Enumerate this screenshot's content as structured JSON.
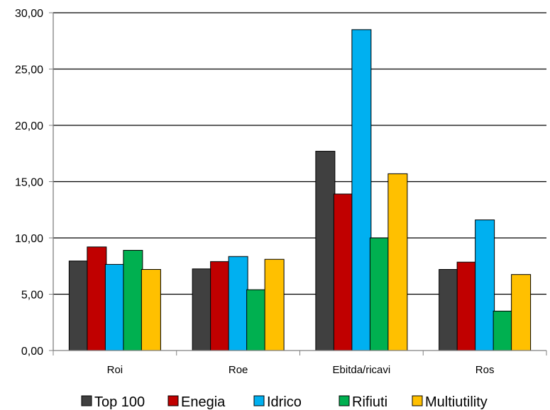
{
  "chart_data": {
    "type": "bar",
    "title": "",
    "xlabel": "",
    "ylabel": "",
    "categories": [
      "Roi",
      "Roe",
      "Ebitda/ricavi",
      "Ros"
    ],
    "ylim": [
      0,
      30
    ],
    "yticks": [
      0,
      5,
      10,
      15,
      20,
      25,
      30
    ],
    "ytick_labels": [
      "0,00",
      "5,00",
      "10,00",
      "15,00",
      "20,00",
      "25,00",
      "30,00"
    ],
    "grid": true,
    "legend_position": "bottom",
    "series": [
      {
        "name": "Top 100",
        "color": "#404040",
        "values": [
          7.95,
          7.25,
          17.7,
          7.2
        ]
      },
      {
        "name": "Enegia",
        "color": "#C00000",
        "values": [
          9.2,
          7.9,
          13.9,
          7.85
        ]
      },
      {
        "name": "Idrico",
        "color": "#00B0F0",
        "values": [
          7.65,
          8.35,
          28.5,
          11.6
        ]
      },
      {
        "name": "Rifiuti",
        "color": "#00B050",
        "values": [
          8.9,
          5.4,
          10.0,
          3.5
        ]
      },
      {
        "name": "Multiutility",
        "color": "#FFC000",
        "values": [
          7.2,
          8.1,
          15.7,
          6.75
        ]
      }
    ]
  }
}
